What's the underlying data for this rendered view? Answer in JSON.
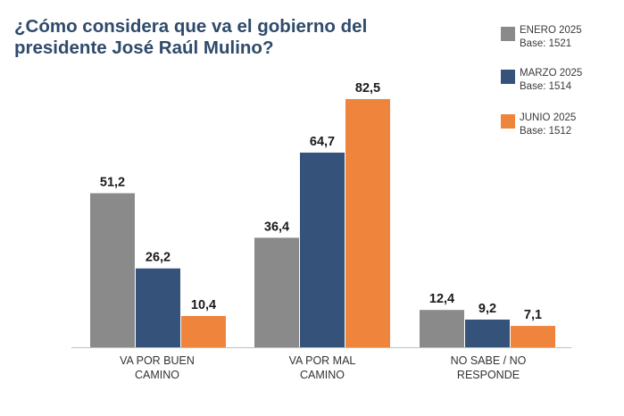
{
  "chart_data": {
    "type": "bar",
    "title": "¿Cómo considera que va el gobierno del presidente José Raúl Mulino?",
    "categories": [
      [
        "VA POR BUEN",
        "CAMINO"
      ],
      [
        "VA POR MAL",
        "CAMINO"
      ],
      [
        "NO SABE / NO",
        "RESPONDE"
      ]
    ],
    "series": [
      {
        "name": "ENERO 2025",
        "base": "Base: 1521",
        "color": "#8a8a8a",
        "values": [
          51.2,
          36.4,
          12.4
        ],
        "labels": [
          "51,2",
          "36,4",
          "12,4"
        ]
      },
      {
        "name": "MARZO 2025",
        "base": "Base: 1514",
        "color": "#35527a",
        "values": [
          26.2,
          64.7,
          9.2
        ],
        "labels": [
          "26,2",
          "64,7",
          "9,2"
        ]
      },
      {
        "name": "JUNIO 2025",
        "base": "Base: 1512",
        "color": "#ef843d",
        "values": [
          10.4,
          82.5,
          7.1
        ],
        "labels": [
          "10,4",
          "82,5",
          "7,1"
        ]
      }
    ],
    "ylim": [
      0,
      100
    ],
    "grid": false,
    "legend_position": "top-right",
    "xlabel": "",
    "ylabel": ""
  }
}
